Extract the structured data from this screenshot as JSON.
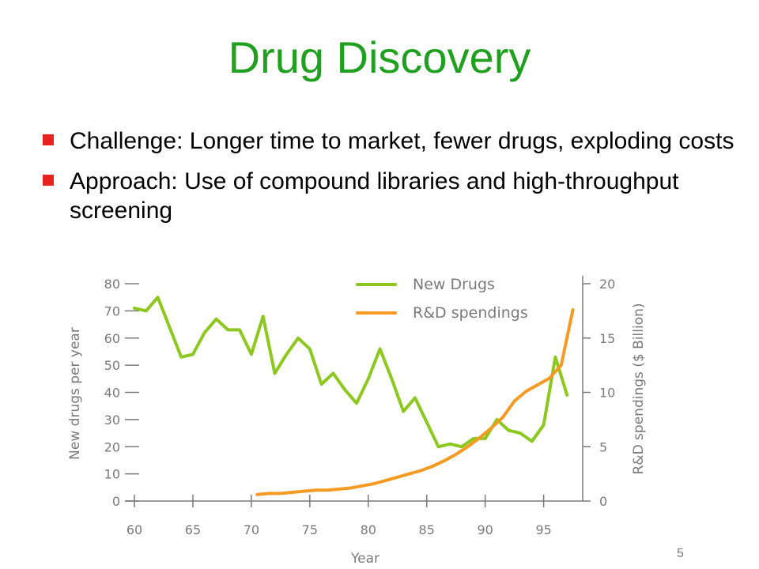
{
  "slide": {
    "title": "Drug Discovery",
    "bullets": [
      "Challenge: Longer time to market, fewer drugs, exploding costs",
      "Approach: Use of compound libraries and high-throughput screening"
    ],
    "page_number": "5",
    "colors": {
      "title": "#1fa01f",
      "bullet_marker": "#e8231f",
      "axis": "#7a7a7a"
    }
  },
  "chart_data": {
    "type": "line",
    "xlabel": "Year",
    "ylabel": "New drugs per year",
    "y2label": "R&D spendings ($ Billion)",
    "xlim": [
      60,
      98
    ],
    "ylim": [
      0,
      80
    ],
    "y2lim": [
      0,
      20
    ],
    "x_ticks": [
      "60",
      "65",
      "70",
      "75",
      "80",
      "85",
      "90",
      "95"
    ],
    "y_ticks": [
      "0",
      "10",
      "20",
      "30",
      "40",
      "50",
      "60",
      "70",
      "80"
    ],
    "y2_ticks": [
      "0",
      "5",
      "10",
      "15",
      "20"
    ],
    "legend_position": "top-center",
    "series": [
      {
        "name": "New Drugs",
        "axis": "left",
        "color": "#8cc81e",
        "x": [
          60,
          61,
          62,
          63,
          64,
          65,
          66,
          67,
          68,
          69,
          70,
          71,
          72,
          73,
          74,
          75,
          76,
          77,
          78,
          79,
          80,
          81,
          82,
          83,
          84,
          85,
          86,
          87,
          88,
          89,
          90,
          91,
          92,
          93,
          94,
          95,
          96,
          97
        ],
        "values": [
          71,
          70,
          75,
          64,
          53,
          54,
          62,
          67,
          63,
          63,
          54,
          68,
          47,
          54,
          60,
          56,
          43,
          47,
          41,
          36,
          45,
          56,
          45,
          33,
          38,
          29,
          20,
          21,
          20,
          23,
          23,
          30,
          26,
          25,
          22,
          28,
          53,
          39
        ]
      },
      {
        "name": "R&D spendings",
        "axis": "right",
        "color": "#f59a23",
        "x": [
          70.5,
          71.5,
          72.5,
          73.5,
          74.5,
          75.5,
          76.5,
          77.5,
          78.5,
          79.5,
          80.5,
          81.5,
          82.5,
          83.5,
          84.5,
          85.5,
          86.5,
          87.5,
          88.5,
          89.5,
          90.5,
          91.5,
          92.5,
          93.5,
          94.5,
          95.5,
          96.5,
          97.5
        ],
        "values": [
          0.6,
          0.7,
          0.7,
          0.8,
          0.9,
          1.0,
          1.0,
          1.1,
          1.2,
          1.4,
          1.6,
          1.9,
          2.2,
          2.5,
          2.8,
          3.2,
          3.7,
          4.3,
          5.0,
          5.8,
          6.7,
          7.7,
          9.2,
          10.1,
          10.7,
          11.3,
          12.5,
          17.6
        ]
      }
    ]
  }
}
